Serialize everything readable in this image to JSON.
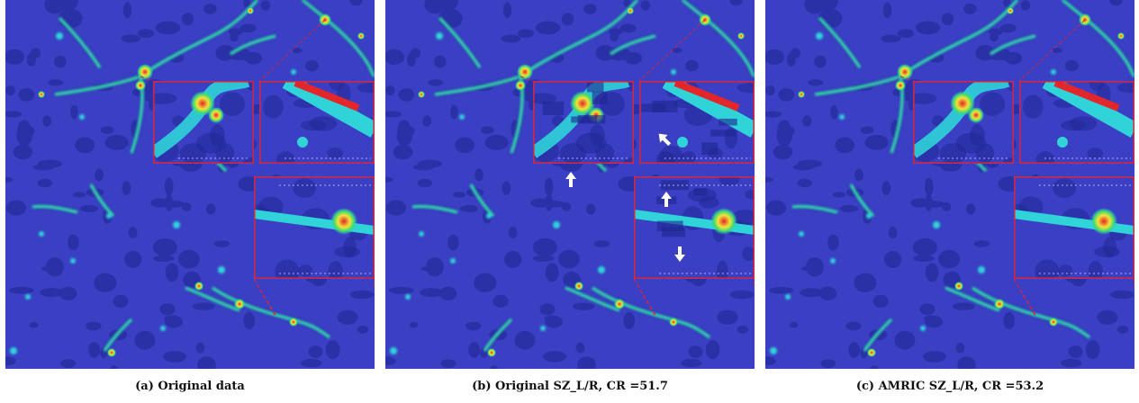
{
  "figure": {
    "panels": [
      {
        "id": "a",
        "caption_prefix": "(a)",
        "caption_text": "Original data",
        "has_artifact_arrows": false
      },
      {
        "id": "b",
        "caption_prefix": "(b)",
        "caption_text": "Original SZ_L/R, CR =51.7",
        "has_artifact_arrows": true
      },
      {
        "id": "c",
        "caption_prefix": "(c)",
        "caption_text": "AMRIC SZ_L/R, CR =53.2",
        "has_artifact_arrows": false
      }
    ],
    "colors": {
      "background_field": "#3a3fc4",
      "void_dark": "#1e2690",
      "filament_cyan": "#2fd3d8",
      "filament_green": "#3adb6e",
      "hot_yellow": "#f3e23a",
      "hot_red": "#e3262a",
      "zoom_frame": "#d7263d",
      "arrow": "#ffffff"
    }
  }
}
